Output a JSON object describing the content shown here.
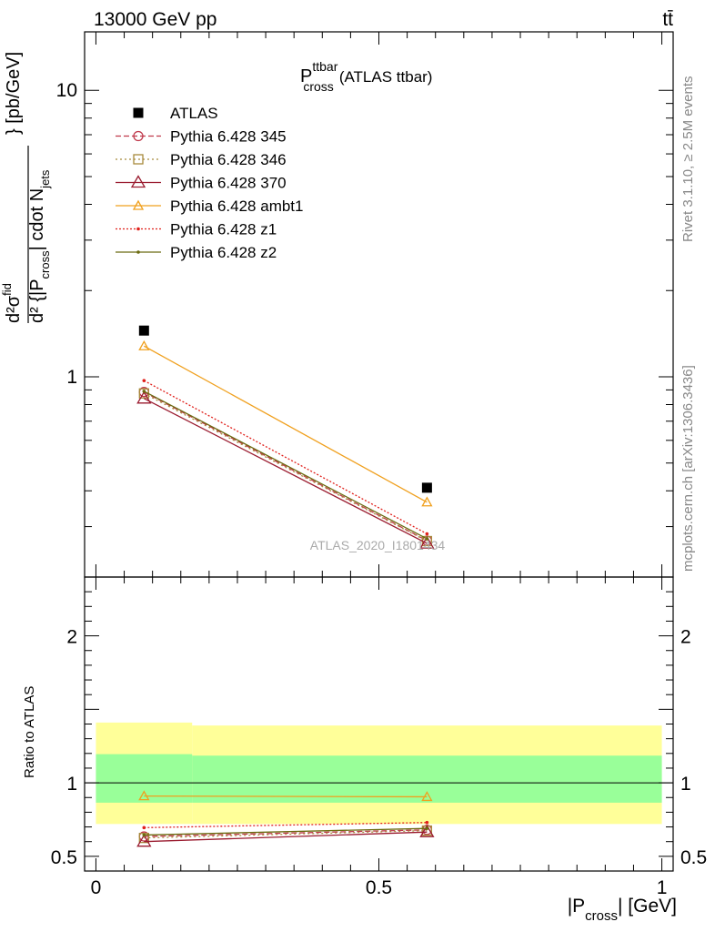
{
  "header": {
    "left": "13000 GeV pp",
    "right": "tt̄"
  },
  "side_labels": {
    "rivet": "Rivet 3.1.10, ≥ 2.5M events",
    "mcplots": "mcplots.cern.ch [arXiv:1306.3436]"
  },
  "plot_title": {
    "main": "P",
    "sup": "ttbar",
    "sub": "cross",
    "suffix": "(ATLAS ttbar)"
  },
  "watermark": "ATLAS_2020_I1801434",
  "ylabel_parts": {
    "d2sigma": "d²σ",
    "sigma_sup": "fid",
    "denominator": "d² {|P",
    "denom_sub": "cross",
    "denom_tail": "| cdot N",
    "njets_sub": "jets",
    "unit": "} [pb/GeV]"
  },
  "ratio_ylabel": "Ratio to ATLAS",
  "xlabel": {
    "prefix": "|P",
    "sub": "cross",
    "suffix": "| [GeV]"
  },
  "chart_data": [
    {
      "type": "line",
      "panel": "main",
      "title": "P_cross^ttbar (ATLAS ttbar)",
      "xlim": [
        -0.02,
        1.02
      ],
      "ylim": [
        0.2,
        16
      ],
      "yscale": "log",
      "x_ticks": [
        0,
        0.5,
        1
      ],
      "y_tick_labels": [
        "1",
        "10"
      ],
      "x": [
        0.085,
        0.585
      ],
      "data": {
        "name": "ATLAS",
        "values": [
          1.45,
          0.41
        ],
        "color": "#000000",
        "marker": "square"
      },
      "series": [
        {
          "name": "Pythia 6.428 345",
          "values": [
            0.885,
            0.268
          ],
          "color": "#c0394b",
          "dash": "6,3",
          "marker": "circle"
        },
        {
          "name": "Pythia 6.428 346",
          "values": [
            0.875,
            0.267
          ],
          "color": "#a88a3c",
          "dash": "2,3",
          "marker": "square-open"
        },
        {
          "name": "Pythia 6.428 370",
          "values": [
            0.84,
            0.262
          ],
          "color": "#9a1b2f",
          "dash": "",
          "marker": "triangle-open"
        },
        {
          "name": "Pythia 6.428 ambt1",
          "values": [
            1.28,
            0.365
          ],
          "color": "#f0a01e",
          "dash": "",
          "marker": "triangle-open-small"
        },
        {
          "name": "Pythia 6.428 z1",
          "values": [
            0.97,
            0.283
          ],
          "color": "#e0201b",
          "dash": "2,2",
          "marker": "dot"
        },
        {
          "name": "Pythia 6.428 z2",
          "values": [
            0.89,
            0.272
          ],
          "color": "#6b6b10",
          "dash": "",
          "marker": "dot"
        }
      ],
      "legend_position": "top-left"
    },
    {
      "type": "line",
      "panel": "ratio",
      "ylabel": "Ratio to ATLAS",
      "xlim": [
        -0.02,
        1.02
      ],
      "ylim": [
        0.4,
        2.4
      ],
      "x_tick_labels": [
        "0",
        "0.5",
        "1"
      ],
      "y_tick_labels": [
        "0.5",
        "1",
        "2"
      ],
      "reference_line": 1,
      "bands": [
        {
          "name": "outer",
          "color": "#ffff99",
          "segments": [
            {
              "x0": 0.0,
              "x1": 0.17,
              "lo": 0.72,
              "hi": 1.41
            },
            {
              "x0": 0.17,
              "x1": 1.0,
              "lo": 0.72,
              "hi": 1.39
            }
          ]
        },
        {
          "name": "inner",
          "color": "#99ff99",
          "segments": [
            {
              "x0": 0.0,
              "x1": 0.17,
              "lo": 0.865,
              "hi": 1.195
            },
            {
              "x0": 0.17,
              "x1": 1.0,
              "lo": 0.865,
              "hi": 1.185
            }
          ]
        }
      ],
      "x": [
        0.085,
        0.585
      ],
      "series": [
        {
          "name": "Pythia 6.428 345",
          "values": [
            0.635,
            0.68
          ]
        },
        {
          "name": "Pythia 6.428 346",
          "values": [
            0.625,
            0.675
          ]
        },
        {
          "name": "Pythia 6.428 370",
          "values": [
            0.6,
            0.665
          ]
        },
        {
          "name": "Pythia 6.428 ambt1",
          "values": [
            0.91,
            0.905
          ]
        },
        {
          "name": "Pythia 6.428 z1",
          "values": [
            0.695,
            0.73
          ]
        },
        {
          "name": "Pythia 6.428 z2",
          "values": [
            0.645,
            0.69
          ]
        }
      ]
    }
  ]
}
